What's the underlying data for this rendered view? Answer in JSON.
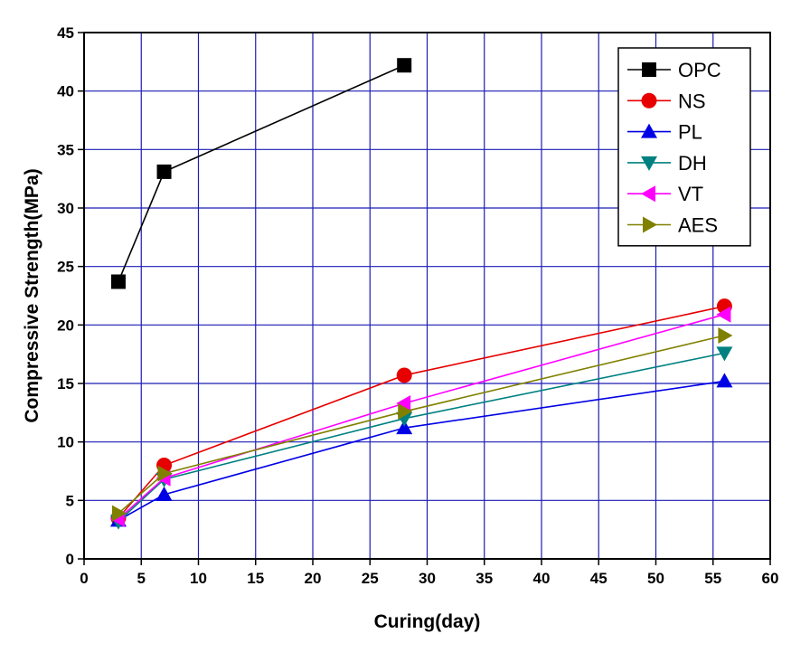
{
  "chart_data": {
    "type": "line",
    "title": "",
    "xlabel": "Curing(day)",
    "ylabel": "Compressive Strength(MPa)",
    "xlim": [
      0,
      60
    ],
    "ylim": [
      0,
      45
    ],
    "xticks": [
      0,
      5,
      10,
      15,
      20,
      25,
      30,
      35,
      40,
      45,
      50,
      55,
      60
    ],
    "yticks": [
      0,
      5,
      10,
      15,
      20,
      25,
      30,
      35,
      40,
      45
    ],
    "grid": true,
    "grid_color": "#1c1cb4",
    "legend_position": "top-right",
    "series": [
      {
        "name": "OPC",
        "color": "#000000",
        "marker": "square",
        "x": [
          3,
          7,
          28
        ],
        "y": [
          23.7,
          33.1,
          42.2
        ]
      },
      {
        "name": "NS",
        "color": "#e60000",
        "marker": "circle",
        "x": [
          3,
          7,
          28,
          56
        ],
        "y": [
          3.5,
          8.0,
          15.7,
          21.6
        ]
      },
      {
        "name": "PL",
        "color": "#0000e6",
        "marker": "triangle-up",
        "x": [
          3,
          7,
          28,
          56
        ],
        "y": [
          3.3,
          5.5,
          11.2,
          15.2
        ]
      },
      {
        "name": "DH",
        "color": "#008080",
        "marker": "triangle-down",
        "x": [
          3,
          7,
          28,
          56
        ],
        "y": [
          3.2,
          6.8,
          12.0,
          17.6
        ]
      },
      {
        "name": "VT",
        "color": "#ff00ff",
        "marker": "triangle-left",
        "x": [
          3,
          7,
          28,
          56
        ],
        "y": [
          3.4,
          6.9,
          13.3,
          20.9
        ]
      },
      {
        "name": "AES",
        "color": "#808000",
        "marker": "triangle-right",
        "x": [
          3,
          7,
          28,
          56
        ],
        "y": [
          3.9,
          7.3,
          12.6,
          19.1
        ]
      }
    ]
  }
}
